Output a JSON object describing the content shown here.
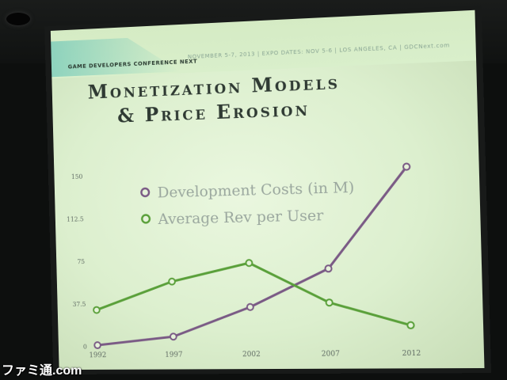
{
  "header": {
    "conference": "GAME DEVELOPERS CONFERENCE NEXT",
    "dates": "NOVEMBER 5-7, 2013 | EXPO DATES: NOV 5-6 | LOS ANGELES, CA | GDCNext.com"
  },
  "slide": {
    "title_line1": "Monetization Models",
    "title_line2": "& Price Erosion"
  },
  "watermark": "ファミ通.com",
  "colors": {
    "dev_costs": "#7a5a85",
    "avg_rev": "#5aa03a",
    "axis_text": "#5f6b63",
    "legend_text": "#9aa79e"
  },
  "chart_data": {
    "type": "line",
    "title": "",
    "xlabel": "",
    "ylabel": "",
    "categories": [
      "1992",
      "1997",
      "2002",
      "2007",
      "2012"
    ],
    "y_ticks": [
      "0",
      "37.5",
      "75",
      "112.5",
      "150"
    ],
    "ylim": [
      0,
      150
    ],
    "grid": false,
    "legend_position": "top-center",
    "series": [
      {
        "name": "Development Costs (in M)",
        "values": [
          1,
          8,
          33,
          65,
          150
        ]
      },
      {
        "name": "Average Rev per User",
        "values": [
          32,
          56,
          71,
          36,
          16
        ]
      }
    ]
  }
}
